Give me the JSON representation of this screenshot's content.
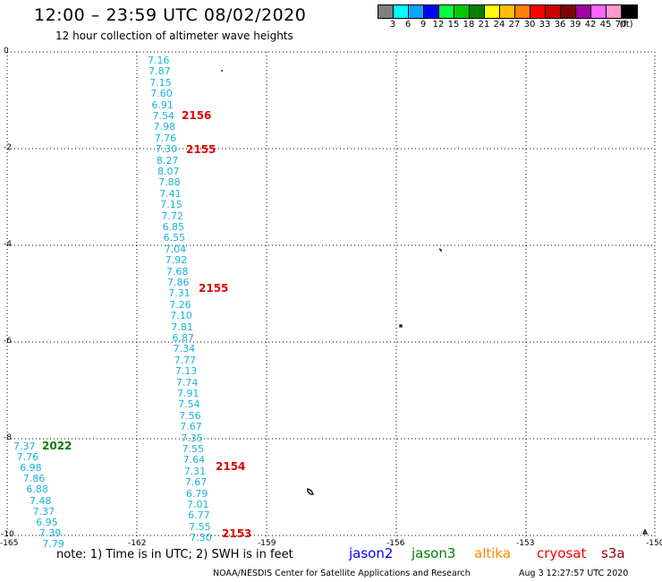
{
  "header": {
    "title": "12:00 – 23:59 UTC 08/02/2020",
    "subtitle": "12 hour collection of altimeter wave heights"
  },
  "legend": {
    "colors": [
      "#7f7f7f",
      "#00ffff",
      "#0aa5ff",
      "#0000ff",
      "#00ff40",
      "#00c800",
      "#008000",
      "#ffff00",
      "#ffbf00",
      "#ff8000",
      "#ff0000",
      "#c80000",
      "#800000",
      "#a000a0",
      "#ff64ff",
      "#ff99cc",
      "#000000"
    ],
    "ticks": [
      "3",
      "6",
      "9",
      "12",
      "15",
      "18",
      "21",
      "24",
      "27",
      "30",
      "33",
      "36",
      "39",
      "42",
      "45",
      "70",
      "(ft)"
    ]
  },
  "axes": {
    "y_ticks": [
      "0",
      "-2",
      "-4",
      "-6",
      "-8",
      "-10"
    ],
    "x_ticks": [
      "-165",
      "-162",
      "-159",
      "-156",
      "-153",
      "-150"
    ]
  },
  "tracks": {
    "main": [
      "7.16",
      "7.87",
      "7.15",
      "7.60",
      "6.91",
      "7.54",
      "7.98",
      "7.76",
      "7.30",
      "8.27",
      "8.07",
      "7.88",
      "7.41",
      "7.15",
      "7.72",
      "6.85",
      "6.55",
      "7.04",
      "7.92",
      "7.68",
      "7.86",
      "7.31",
      "7.26",
      "7.10",
      "7.81",
      "6.87",
      "7.34",
      "7.77",
      "7.13",
      "7.74",
      "7.91",
      "7.54",
      "7.56",
      "7.67",
      "7.35",
      "7.55",
      "7.64",
      "7.31",
      "7.67",
      "6.79",
      "7.01",
      "6.77",
      "7.55",
      "7.30"
    ],
    "left": [
      "7.37",
      "7.76",
      "6.98",
      "7.86",
      "6.88",
      "7.48",
      "7.37",
      "6.95",
      "7.39",
      "7.79"
    ]
  },
  "pass_times": {
    "main": [
      "2156",
      "2155",
      "2155",
      "2154",
      "2153"
    ],
    "left": "2022"
  },
  "colors": {
    "swh_cyan": "#17b3d6",
    "pass_red": "#e00000",
    "pass_green": "#008000",
    "jason2": "#0000ff",
    "jason3": "#008000",
    "altika": "#ff8c00",
    "cryosat": "#ff0000",
    "s3a": "#8b0000"
  },
  "footer": {
    "note": "note: 1) Time is in UTC; 2) SWH is in feet",
    "satellites": [
      "jason2",
      "jason3",
      "altika",
      "cryosat",
      "s3a"
    ],
    "credit": "NOAA/NESDIS Center for Satellite Applications and Research",
    "timestamp": "Aug  3 12:27:57 UTC 2020"
  }
}
